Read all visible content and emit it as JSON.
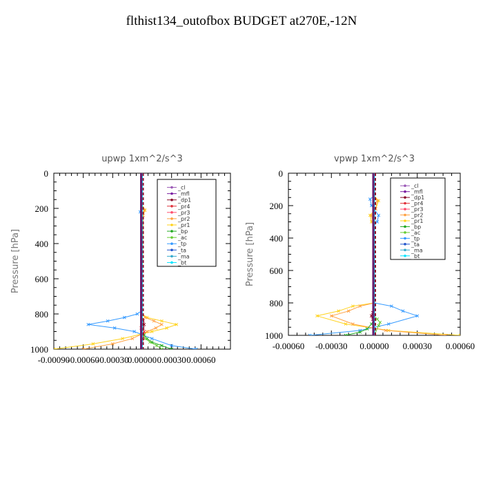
{
  "title": "flthist134_outofbox  BUDGET at270E,-12N",
  "legend_labels": [
    "_cl",
    "_mfl",
    "_dp1",
    "_pr4",
    "_pr3",
    "_pr2",
    "_pr1",
    "_bp",
    "_ac",
    "_tp",
    "_ta",
    "_ma",
    "_bt"
  ],
  "colors": [
    "#9b59b6",
    "#7b1fa2",
    "#8b0a2a",
    "#e0303a",
    "#ff4d6d",
    "#ffa040",
    "#ffd21a",
    "#22aa22",
    "#66cc33",
    "#3399ff",
    "#2255cc",
    "#33aacc",
    "#00e5ff"
  ],
  "chart_data": [
    {
      "type": "line",
      "title": "upwp   1xm^2/s^3",
      "ylabel": "Pressure [hPa]",
      "ylim": [
        1000,
        0
      ],
      "xlim": [
        -0.0009,
        0.0009
      ],
      "xticks": [
        -0.0009,
        -0.0006,
        -0.0003,
        0.0,
        0.0003,
        0.0006
      ],
      "xtick_labels": [
        "-0.00090",
        "-0.00060",
        "-0.00030",
        "0.00000",
        "0.00030",
        "0.00060"
      ],
      "yticks": [
        0,
        200,
        400,
        600,
        800,
        1000
      ],
      "ytick_labels": [
        "0",
        "200",
        "400",
        "600",
        "800",
        "1000"
      ],
      "legend_position": "top-right",
      "series": [
        {
          "name": "_tp",
          "x": [
            0,
            0,
            -2e-05,
            0,
            0,
            -5e-05,
            -0.00018,
            -0.00035,
            -0.00055,
            -0.00028,
            -8e-05,
            0.0001,
            0.0003,
            0.00055
          ],
          "y": [
            0,
            180,
            220,
            260,
            780,
            800,
            820,
            840,
            860,
            880,
            900,
            940,
            980,
            1000
          ]
        },
        {
          "name": "_pr1",
          "x": [
            0,
            0,
            3e-05,
            1e-05,
            0,
            0,
            5e-05,
            0.0002,
            0.00035,
            0.00025,
            0.0001,
            -0.0002,
            -0.0005,
            -0.0009
          ],
          "y": [
            0,
            180,
            210,
            240,
            780,
            800,
            820,
            840,
            860,
            880,
            900,
            940,
            970,
            1000
          ]
        },
        {
          "name": "_pr2",
          "x": [
            0,
            0,
            2e-05,
            1e-05,
            0,
            0,
            3e-05,
            0.00012,
            0.0002,
            0.00014,
            5e-05,
            -0.0001,
            -0.0003,
            -0.0006
          ],
          "y": [
            0,
            180,
            210,
            240,
            780,
            800,
            820,
            840,
            860,
            880,
            900,
            940,
            970,
            1000
          ]
        },
        {
          "name": "_bp",
          "x": [
            0,
            0,
            2e-05,
            5e-05,
            0.0001,
            0.0002,
            0.0003
          ],
          "y": [
            0,
            900,
            920,
            940,
            960,
            980,
            1000
          ]
        },
        {
          "name": "_ac",
          "x": [
            0,
            0,
            1e-05,
            3e-05,
            8e-05,
            0.00015,
            0.0002
          ],
          "y": [
            0,
            900,
            920,
            940,
            960,
            980,
            1000
          ]
        },
        {
          "name": "_pr4",
          "x": [
            0,
            0,
            1e-05,
            2e-05,
            -1e-05,
            2e-05,
            1e-05,
            0
          ],
          "y": [
            0,
            820,
            840,
            860,
            880,
            900,
            940,
            1000
          ]
        },
        {
          "name": "_dp1",
          "x": [
            0,
            0,
            1e-05,
            2e-05,
            1e-05,
            0,
            0
          ],
          "y": [
            0,
            820,
            840,
            860,
            880,
            900,
            1000
          ]
        },
        {
          "name": "_cl",
          "x": [
            0,
            0
          ],
          "y": [
            0,
            1000
          ]
        },
        {
          "name": "_mfl",
          "x": [
            0,
            0
          ],
          "y": [
            0,
            1000
          ]
        },
        {
          "name": "_ta",
          "x": [
            0,
            0
          ],
          "y": [
            0,
            1000
          ]
        },
        {
          "name": "_ma",
          "x": [
            0,
            0
          ],
          "y": [
            0,
            1000
          ]
        },
        {
          "name": "_bt",
          "x": [
            0,
            0
          ],
          "y": [
            0,
            1000
          ]
        }
      ]
    },
    {
      "type": "line",
      "title": "vpwp   1xm^2/s^3",
      "ylabel": "Pressure [hPa]",
      "ylim": [
        1000,
        0
      ],
      "xlim": [
        -0.0006,
        0.0006
      ],
      "xticks": [
        -0.0006,
        -0.0003,
        0.0,
        0.0003,
        0.0006
      ],
      "xtick_labels": [
        "-0.00060",
        "-0.00030",
        "0.00000",
        "0.00030",
        "0.00060"
      ],
      "yticks": [
        0,
        200,
        400,
        600,
        800,
        1000
      ],
      "ytick_labels": [
        "0",
        "200",
        "400",
        "600",
        "800",
        "1000"
      ],
      "legend_position": "top-right",
      "series": [
        {
          "name": "_tp",
          "x": [
            0,
            0,
            -3e-05,
            -2e-05,
            3e-05,
            2e-05,
            0,
            0,
            0.00012,
            0.0002,
            0.0003,
            0.0001,
            -0.0001,
            -0.00045
          ],
          "y": [
            0,
            140,
            160,
            200,
            260,
            300,
            320,
            800,
            820,
            850,
            880,
            930,
            970,
            1000
          ]
        },
        {
          "name": "_pr1",
          "x": [
            0,
            0,
            3e-05,
            1e-05,
            -3e-05,
            -2e-05,
            0,
            0,
            -0.00015,
            -0.00025,
            -0.0004,
            -0.0002,
            0.0001,
            0.0006
          ],
          "y": [
            0,
            140,
            170,
            220,
            260,
            300,
            320,
            800,
            820,
            850,
            880,
            930,
            970,
            1000
          ]
        },
        {
          "name": "_pr2",
          "x": [
            0,
            0,
            2e-05,
            1e-05,
            -2e-05,
            -1e-05,
            0,
            0,
            -0.0001,
            -0.00018,
            -0.0003,
            -0.00015,
            8e-05,
            0.0005
          ],
          "y": [
            0,
            140,
            170,
            220,
            260,
            300,
            320,
            800,
            820,
            850,
            880,
            930,
            970,
            1000
          ]
        },
        {
          "name": "_bp",
          "x": [
            0,
            0,
            -2e-05,
            -5e-05,
            -0.0001,
            -0.0002
          ],
          "y": [
            0,
            900,
            930,
            960,
            980,
            1000
          ]
        },
        {
          "name": "_ac",
          "x": [
            0,
            0,
            2e-05,
            4e-05,
            3e-05,
            0
          ],
          "y": [
            0,
            880,
            900,
            920,
            940,
            1000
          ]
        },
        {
          "name": "_pr4",
          "x": [
            0,
            0,
            -1e-05,
            -2e-05,
            -1e-05,
            0
          ],
          "y": [
            0,
            840,
            860,
            880,
            900,
            1000
          ]
        },
        {
          "name": "_dp1",
          "x": [
            0,
            0,
            -1e-05,
            -2e-05,
            -1e-05,
            0
          ],
          "y": [
            0,
            840,
            860,
            880,
            900,
            1000
          ]
        },
        {
          "name": "_cl",
          "x": [
            0,
            0
          ],
          "y": [
            0,
            1000
          ]
        },
        {
          "name": "_mfl",
          "x": [
            0,
            0
          ],
          "y": [
            0,
            1000
          ]
        },
        {
          "name": "_ta",
          "x": [
            0,
            0
          ],
          "y": [
            0,
            1000
          ]
        },
        {
          "name": "_ma",
          "x": [
            0,
            0
          ],
          "y": [
            0,
            1000
          ]
        },
        {
          "name": "_bt",
          "x": [
            0,
            0
          ],
          "y": [
            0,
            1000
          ]
        }
      ]
    }
  ]
}
